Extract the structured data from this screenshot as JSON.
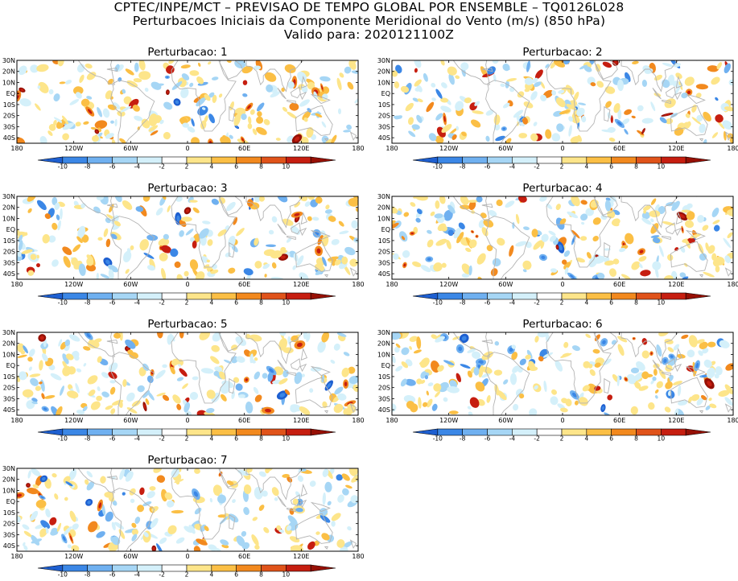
{
  "header": {
    "line1": "CPTEC/INPE/MCT – PREVISAO DE TEMPO GLOBAL POR ENSEMBLE – TQ0126L028",
    "line2": "Perturbacoes Iniciais da Componente Meridional do Vento (m/s) (850 hPa)",
    "line3": "Valido para: 2020121100Z"
  },
  "panels": [
    {
      "title": "Perturbacao: 1"
    },
    {
      "title": "Perturbacao: 2"
    },
    {
      "title": "Perturbacao: 3"
    },
    {
      "title": "Perturbacao: 4"
    },
    {
      "title": "Perturbacao: 5"
    },
    {
      "title": "Perturbacao: 6"
    },
    {
      "title": "Perturbacao: 7"
    }
  ],
  "map": {
    "lat_labels": [
      "30N",
      "20N",
      "10N",
      "EQ",
      "10S",
      "20S",
      "30S",
      "40S"
    ],
    "lon_labels": [
      "180",
      "120W",
      "60W",
      "0",
      "60E",
      "120E",
      "180"
    ]
  },
  "colorbar": {
    "labels": [
      "-10",
      "-8",
      "-6",
      "-4",
      "-2",
      "2",
      "4",
      "6",
      "8",
      "10"
    ],
    "colors": [
      "#1e5fd0",
      "#3b87e6",
      "#6fb0f0",
      "#a6d6f5",
      "#d4f0fa",
      "#ffffff",
      "#fde58a",
      "#fbbf45",
      "#f2891e",
      "#e0531a",
      "#c61e10",
      "#961005"
    ]
  },
  "colors": {
    "land": "#b4b4b4",
    "frame": "#000000"
  }
}
